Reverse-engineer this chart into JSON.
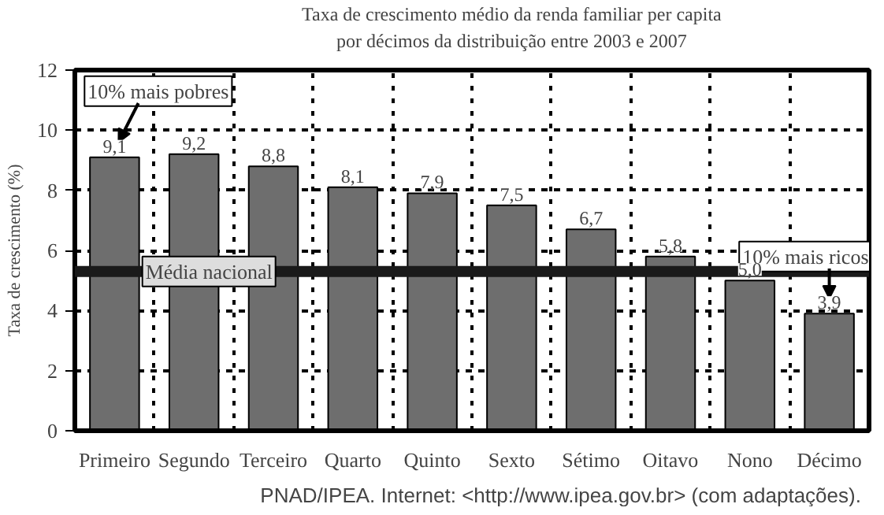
{
  "chart_data": {
    "type": "bar",
    "title": "Taxa de crescimento médio da renda familiar per capita\npor décimos da distribuição entre 2003 e 2007",
    "ylabel": "Taxa de crescimento (%)",
    "categories": [
      "Primeiro",
      "Segundo",
      "Terceiro",
      "Quarto",
      "Quinto",
      "Sexto",
      "Sétimo",
      "Oitavo",
      "Nono",
      "Décimo"
    ],
    "values": [
      9.1,
      9.2,
      8.8,
      8.1,
      7.9,
      7.5,
      6.7,
      5.8,
      5.0,
      3.9
    ],
    "value_labels": [
      "9,1",
      "9,2",
      "8,8",
      "8,1",
      "7,9",
      "7,5",
      "6,7",
      "5,8",
      "5,0",
      "3,9"
    ],
    "color": "#6e6e6e",
    "ylim": [
      0,
      12
    ],
    "yticks": [
      0,
      2,
      4,
      6,
      8,
      10,
      12
    ],
    "grid": true,
    "ref_lines": [
      {
        "axis": "y",
        "value": 5.3,
        "label": "Média nacional",
        "color": "#1a1a1a"
      }
    ],
    "annotations": [
      {
        "text": "10% mais pobres",
        "x": "Primeiro",
        "y": 9.1
      },
      {
        "text": "10% mais ricos",
        "x": "Décimo",
        "y": 3.9
      },
      "PNAD/IPEA. Internet: <http://www.ipea.gov.br> (com adaptações)."
    ]
  }
}
